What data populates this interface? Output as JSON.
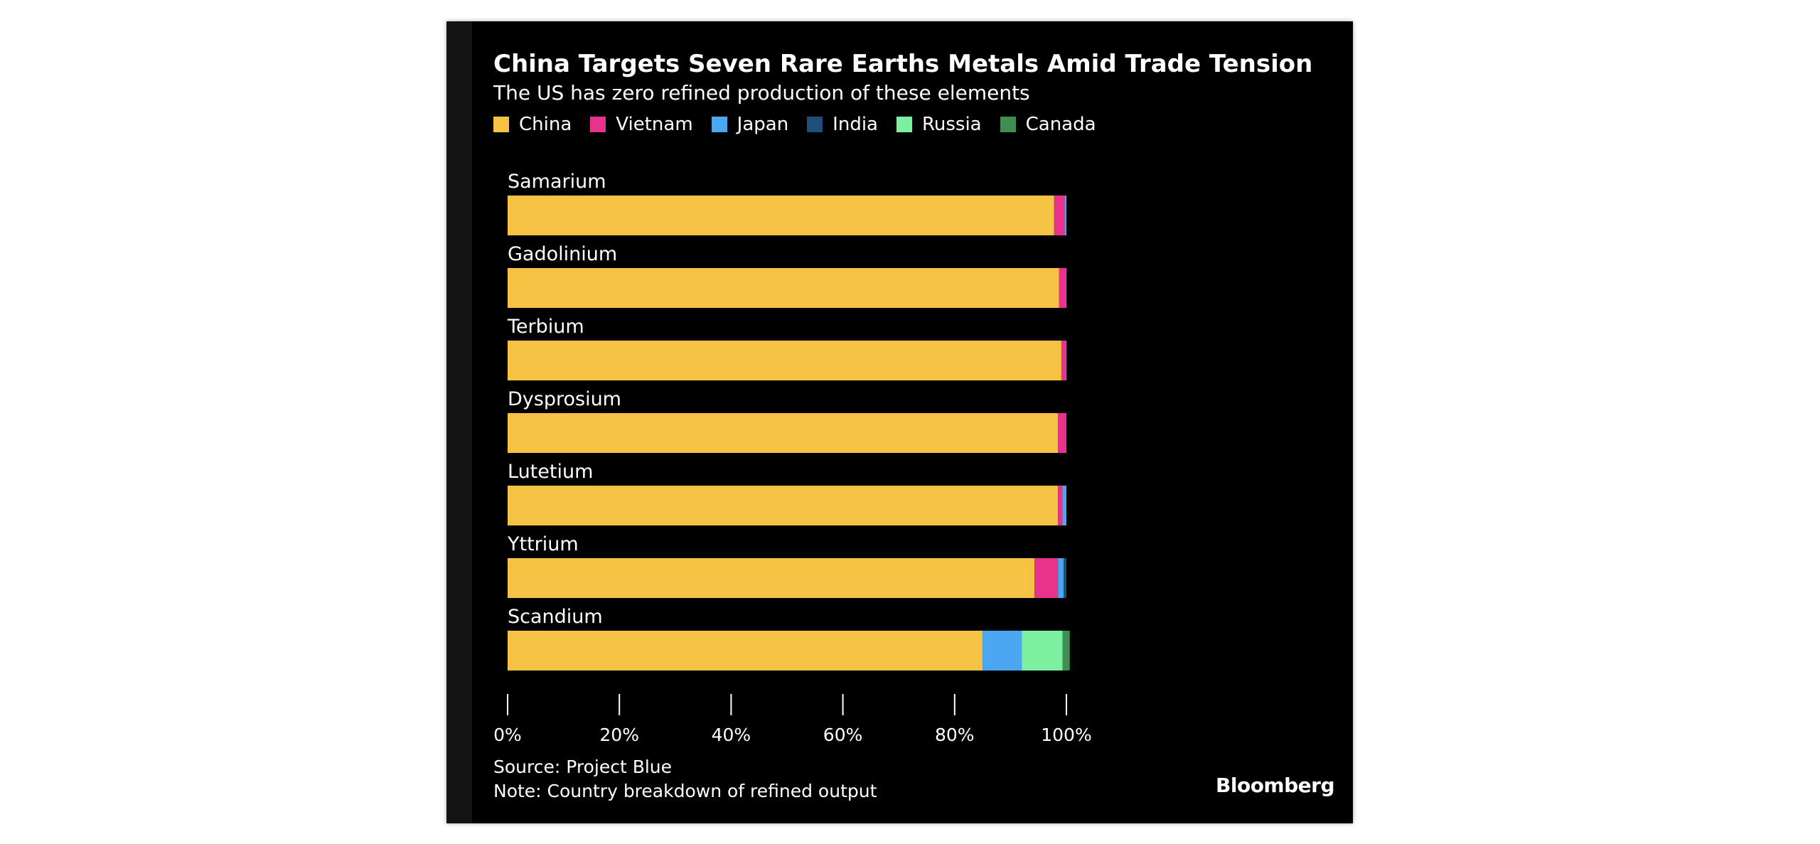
{
  "chart_data": {
    "type": "bar",
    "orientation": "horizontal",
    "stacked": true,
    "title": "China Targets Seven Rare Earths Metals Amid Trade Tension",
    "subtitle": "The US has zero refined production of these elements",
    "categories": [
      "Samarium",
      "Gadolinium",
      "Terbium",
      "Dysprosium",
      "Lutetium",
      "Yttrium",
      "Scandium"
    ],
    "series": [
      {
        "name": "China",
        "color": "#f5c242",
        "values": [
          97.8,
          98.7,
          99.1,
          98.5,
          98.5,
          94.3,
          85.0
        ]
      },
      {
        "name": "Vietnam",
        "color": "#e8328c",
        "values": [
          1.9,
          1.2,
          0.8,
          1.5,
          0.8,
          4.2,
          0.0
        ]
      },
      {
        "name": "Japan",
        "color": "#4aa8f0",
        "values": [
          0.3,
          0.1,
          0.1,
          0.0,
          0.7,
          1.0,
          7.0
        ]
      },
      {
        "name": "India",
        "color": "#1e4f7a",
        "values": [
          0.0,
          0.0,
          0.0,
          0.0,
          0.0,
          0.5,
          0.0
        ]
      },
      {
        "name": "Russia",
        "color": "#7cf0a0",
        "values": [
          0.0,
          0.0,
          0.0,
          0.0,
          0.0,
          0.0,
          7.3
        ]
      },
      {
        "name": "Canada",
        "color": "#3f8f55",
        "values": [
          0.0,
          0.0,
          0.0,
          0.0,
          0.0,
          0.0,
          1.3
        ]
      }
    ],
    "xlim": [
      0,
      100
    ],
    "x_ticks": [
      "0%",
      "20%",
      "40%",
      "60%",
      "80%",
      "100%"
    ],
    "legend_position": "top",
    "grid": false
  },
  "footer": {
    "source": "Source: Project Blue",
    "note": "Note: Country breakdown of refined output"
  },
  "brand": "Bloomberg"
}
